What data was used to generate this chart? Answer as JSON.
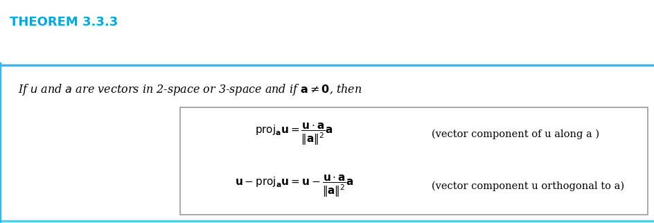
{
  "title": "THEOREM 3.3.3",
  "title_color": "#00AADD",
  "title_fontsize": 13,
  "outer_bg_color": "#C8E8F5",
  "outer_border_color": "#33BBEE",
  "outer_border_color2": "#55CCEE",
  "inner_box_bg_color": "#FFFFFF",
  "inner_box_border_color": "#999999",
  "white_top_color": "#FFFFFF",
  "intro_text_regular": "If ",
  "intro_text_full": "If $\\mathit{u}$ and $\\mathit{a}$ are vectors in 2-space or 3-space and if $\\mathbf{a} \\neq \\mathbf{0}$, then",
  "intro_fontsize": 11.5,
  "eq1": "$\\mathrm{proj}_{\\mathbf{a}}\\mathbf{u} = \\dfrac{\\mathbf{u} \\cdot \\mathbf{a}}{\\|\\mathbf{a}\\|^2}\\mathbf{a}$",
  "eq1_label": "(vector component of u along a )",
  "eq2": "$\\mathbf{u} - \\mathrm{proj}_{\\mathbf{a}}\\mathbf{u} = \\mathbf{u} - \\dfrac{\\mathbf{u} \\cdot \\mathbf{a}}{\\|\\mathbf{a}\\|^2}\\mathbf{a}$",
  "eq2_label": "(vector component u orthogonal to a)",
  "eq_fontsize": 11,
  "label_fontsize": 10.5
}
